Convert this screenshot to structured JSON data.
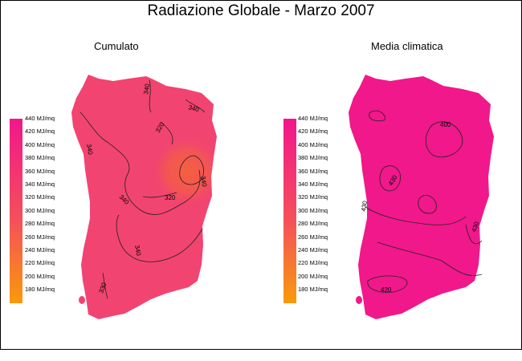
{
  "title": "Radiazione Globale - Marzo 2007",
  "panels": [
    {
      "subtitle": "Cumulato",
      "legend": [
        "440 MJ/mq",
        "420 MJ/mq",
        "400 MJ/mq",
        "380 MJ/mq",
        "360 MJ/mq",
        "340 MJ/mq",
        "320 MJ/mq",
        "300 MJ/mq",
        "280 MJ/mq",
        "260 MJ/mq",
        "240 MJ/mq",
        "220 MJ/mq",
        "200 MJ/mq",
        "180 MJ/mq"
      ],
      "contour_labels": [
        "340",
        "340",
        "320",
        "340",
        "320",
        "340",
        "340",
        "330",
        "340"
      ]
    },
    {
      "subtitle": "Media climatica",
      "legend": [
        "440 MJ/mq",
        "420 MJ/mq",
        "400 MJ/mq",
        "380 MJ/mq",
        "360 MJ/mq",
        "340 MJ/mq",
        "320 MJ/mq",
        "300 MJ/mq",
        "280 MJ/mq",
        "260 MJ/mq",
        "240 MJ/mq",
        "220 MJ/mq",
        "200 MJ/mq",
        "180 MJ/mq"
      ],
      "contour_labels": [
        "400",
        "430",
        "430",
        "430",
        "420"
      ]
    }
  ],
  "colors": {
    "scale_top": "#f2168c",
    "scale_mid": "#f5505a",
    "scale_bottom": "#f99a0a",
    "map_left_base": "#f24470",
    "map_left_hot": "#f5613e",
    "map_right_base": "#f0188a"
  }
}
